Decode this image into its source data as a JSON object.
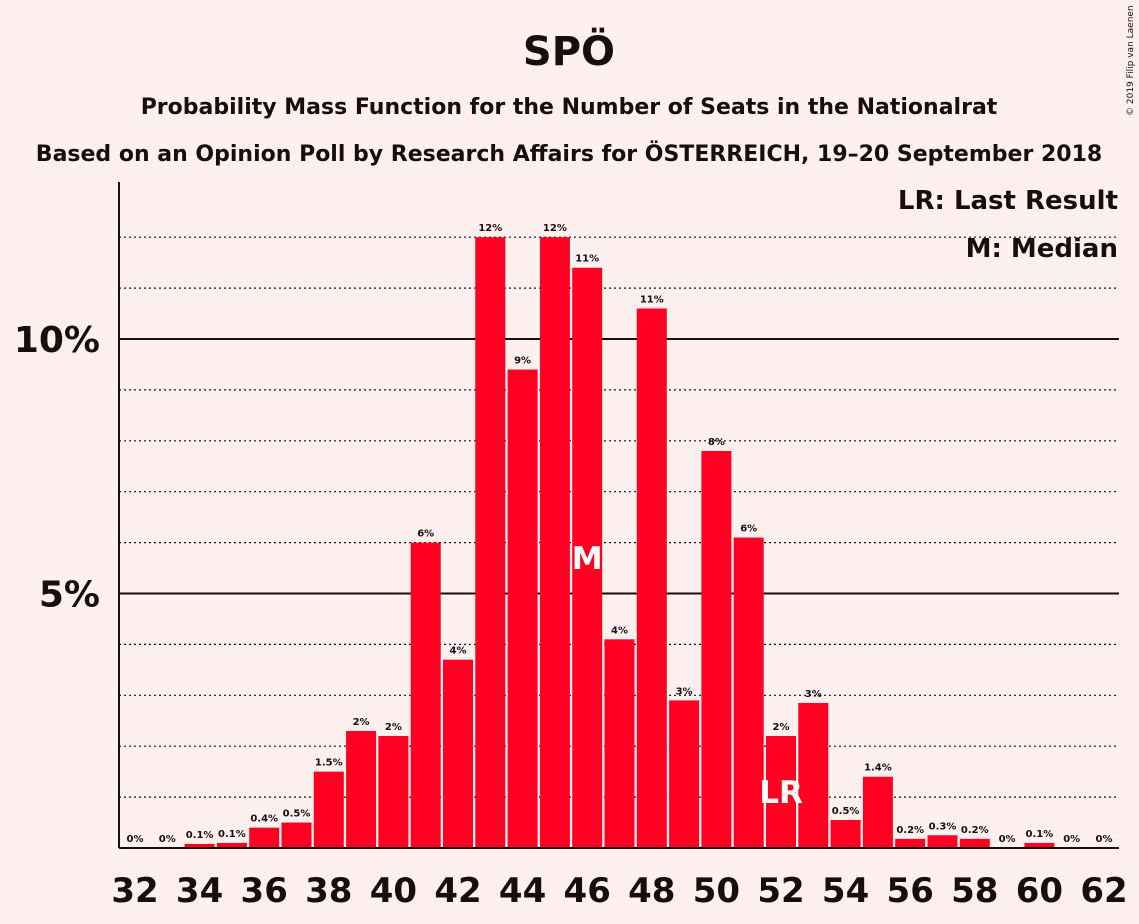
{
  "chart_data": {
    "type": "bar",
    "title": "SPÖ",
    "subtitle": "Probability Mass Function for the Number of Seats in the Nationalrat",
    "subtitle2": "Based on an Opinion Poll by Research Affairs for ÖSTERREICH, 19–20 September 2018",
    "copyright": "© 2019 Filip van Laenen",
    "bar_color": "#ff0022",
    "x": [
      32,
      33,
      34,
      35,
      36,
      37,
      38,
      39,
      40,
      41,
      42,
      43,
      44,
      45,
      46,
      47,
      48,
      49,
      50,
      51,
      52,
      53,
      54,
      55,
      56,
      57,
      58,
      59,
      60,
      61,
      62
    ],
    "values": [
      0,
      0,
      0.08,
      0.1,
      0.4,
      0.5,
      1.5,
      2.3,
      2.2,
      6.0,
      3.7,
      12.0,
      9.4,
      12.0,
      11.4,
      4.1,
      10.6,
      2.9,
      7.8,
      6.1,
      2.2,
      2.85,
      0.55,
      1.4,
      0.18,
      0.25,
      0.18,
      0,
      0.1,
      0,
      0
    ],
    "data_labels": [
      "0%",
      "0%",
      "0.1%",
      "0.1%",
      "0.4%",
      "0.5%",
      "1.5%",
      "2%",
      "2%",
      "6%",
      "4%",
      "12%",
      "9%",
      "12%",
      "11%",
      "4%",
      "11%",
      "3%",
      "8%",
      "6%",
      "2%",
      "3%",
      "0.5%",
      "1.4%",
      "0.2%",
      "0.3%",
      "0.2%",
      "0%",
      "0.1%",
      "0%",
      "0%"
    ],
    "x_tick_labels": [
      "32",
      "34",
      "36",
      "38",
      "40",
      "42",
      "44",
      "46",
      "48",
      "50",
      "52",
      "54",
      "56",
      "58",
      "60",
      "62"
    ],
    "y_tick_labels": [
      {
        "value": 5,
        "label": "5%"
      },
      {
        "value": 10,
        "label": "10%"
      }
    ],
    "ylim": [
      0,
      13
    ],
    "gridlines_minor": [
      1,
      2,
      3,
      4,
      6,
      7,
      8,
      9,
      11,
      12
    ],
    "median": {
      "seat": 46,
      "label": "M"
    },
    "last_result": {
      "seat": 52,
      "label": "LR"
    },
    "legend": {
      "placement": "top-right",
      "items": [
        "LR: Last Result",
        "M: Median"
      ]
    }
  }
}
